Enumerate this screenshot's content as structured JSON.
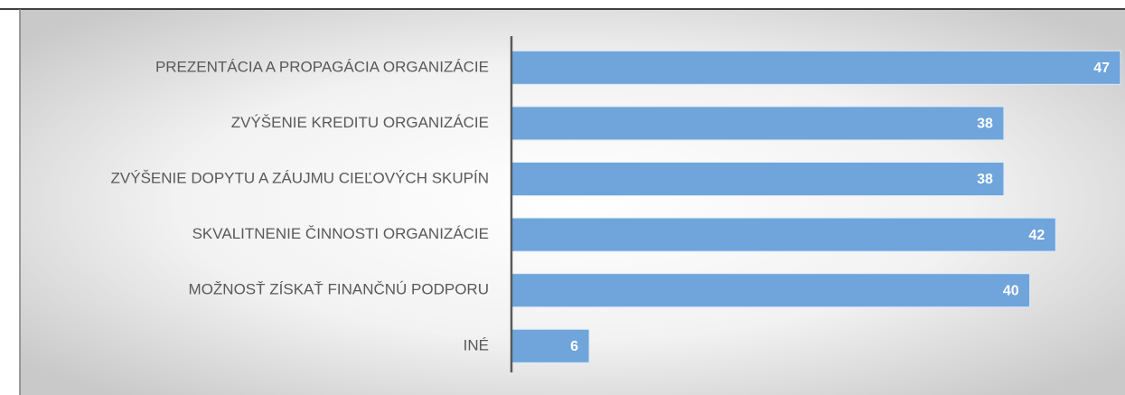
{
  "chart_data": {
    "type": "bar",
    "orientation": "horizontal",
    "categories": [
      "PREZENTÁCIA A PROPAGÁCIA ORGANIZÁCIE",
      "ZVÝŠENIE KREDITU ORGANIZÁCIE",
      "ZVÝŠENIE DOPYTU A ZÁUJMU CIEĽOVÝCH SKUPÍN",
      "SKVALITNENIE ČINNOSTI ORGANIZÁCIE",
      "MOŽNOSŤ ZÍSKAŤ FINANČNÚ PODPORU",
      "INÉ"
    ],
    "values": [
      47,
      38,
      38,
      42,
      40,
      6
    ],
    "color": "#6fa5db"
  }
}
